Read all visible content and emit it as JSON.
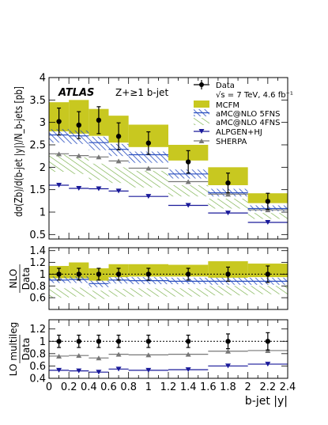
{
  "chart_data": {
    "type": "line",
    "title": "",
    "bins": [
      [
        0,
        0.2
      ],
      [
        0.2,
        0.4
      ],
      [
        0.4,
        0.6
      ],
      [
        0.6,
        0.8
      ],
      [
        0.8,
        1.2
      ],
      [
        1.2,
        1.6
      ],
      [
        1.6,
        2.0
      ],
      [
        2.0,
        2.4
      ]
    ],
    "x_tick_labels": [
      "0",
      "0.2",
      "0.4",
      "0.6",
      "0.8",
      "1",
      "1.2",
      "1.4",
      "1.6",
      "1.8",
      "2",
      "2.2",
      "2.4"
    ],
    "xlabel": "b-jet |y|",
    "atlas_label": "ATLAS",
    "process_label": "Z+≥1 b-jet",
    "legend": [
      {
        "id": "data",
        "label": "Data",
        "sublabel": "√s = 7 TeV, 4.6 fb⁻¹"
      },
      {
        "id": "mcfm",
        "label": "MCFM"
      },
      {
        "id": "amc5",
        "label": "aMC@NLO 5FNS"
      },
      {
        "id": "amc4",
        "label": "aMC@NLO 4FNS"
      },
      {
        "id": "alpgen",
        "label": "ALPGEN+HJ"
      },
      {
        "id": "sherpa",
        "label": "SHERPA"
      }
    ],
    "colors": {
      "mcfm": "#c8c820",
      "amc5": "#2a4fc0",
      "amc4": "#5aa02a",
      "alpgen": "#1a1a9a",
      "sherpa": "#777777",
      "data": "#000000"
    },
    "panels": [
      {
        "id": "main",
        "ylabel": "dσ(Zb)/d(b-jet |y|)/N_b-jets [pb]",
        "ylim": [
          0.4,
          4.0
        ],
        "yticks": [
          "0.5",
          "1",
          "1.5",
          "2",
          "2.5",
          "3",
          "3.5",
          "4"
        ],
        "ytick_values": [
          0.5,
          1,
          1.5,
          2,
          2.5,
          3,
          3.5,
          4
        ],
        "data": {
          "y": [
            3.02,
            2.94,
            3.05,
            2.69,
            2.54,
            2.12,
            1.65,
            1.24
          ],
          "err": [
            0.3,
            0.3,
            0.3,
            0.3,
            0.25,
            0.25,
            0.22,
            0.18
          ]
        },
        "mcfm": {
          "lo": [
            2.8,
            2.75,
            2.7,
            2.55,
            2.45,
            2.15,
            1.6,
            1.2
          ],
          "hi": [
            3.45,
            3.5,
            3.3,
            3.15,
            2.95,
            2.5,
            2.0,
            1.42
          ]
        },
        "amc5": {
          "lo": [
            2.55,
            2.52,
            2.38,
            2.25,
            2.1,
            1.75,
            1.35,
            1.02
          ],
          "hi": [
            2.85,
            2.82,
            2.68,
            2.52,
            2.35,
            1.95,
            1.52,
            1.15
          ],
          "y": [
            2.72,
            2.7,
            2.55,
            2.4,
            2.28,
            1.85,
            1.43,
            1.08
          ]
        },
        "amc4": {
          "lo": [
            1.9,
            1.85,
            1.72,
            1.65,
            1.55,
            1.35,
            1.08,
            0.85
          ],
          "hi": [
            2.28,
            2.22,
            2.08,
            2.0,
            1.92,
            1.6,
            1.3,
            0.98
          ]
        },
        "alpgen": {
          "y": [
            1.6,
            1.53,
            1.52,
            1.47,
            1.35,
            1.15,
            0.98,
            0.77
          ]
        },
        "sherpa": {
          "y": [
            2.3,
            2.26,
            2.23,
            2.14,
            1.98,
            1.68,
            1.4,
            1.05
          ]
        }
      },
      {
        "id": "nlo_ratio",
        "ylabel": "NLO / Data",
        "ylim": [
          0.4,
          1.45
        ],
        "yticks": [
          "0.6",
          "0.8",
          "1",
          "1.2",
          "1.4"
        ],
        "ytick_values": [
          0.6,
          0.8,
          1.0,
          1.2,
          1.4
        ],
        "data": {
          "y": [
            1,
            1,
            1,
            1,
            1,
            1,
            1,
            1
          ],
          "err": [
            0.1,
            0.1,
            0.1,
            0.1,
            0.1,
            0.1,
            0.12,
            0.14
          ]
        },
        "mcfm": {
          "lo": [
            0.93,
            0.93,
            0.89,
            0.95,
            0.96,
            0.96,
            0.94,
            0.95
          ],
          "hi": [
            1.14,
            1.2,
            1.1,
            1.17,
            1.17,
            1.16,
            1.22,
            1.18
          ]
        },
        "amc5": {
          "lo": [
            0.85,
            0.85,
            0.78,
            0.84,
            0.83,
            0.83,
            0.82,
            0.82
          ],
          "hi": [
            0.96,
            0.96,
            0.89,
            0.95,
            0.95,
            0.94,
            0.94,
            0.94
          ],
          "y": [
            0.9,
            0.91,
            0.84,
            0.9,
            0.89,
            0.88,
            0.88,
            0.88
          ]
        },
        "amc4": {
          "lo": [
            0.6,
            0.62,
            0.58,
            0.62,
            0.62,
            0.62,
            0.64,
            0.66
          ],
          "hi": [
            0.76,
            0.77,
            0.72,
            0.75,
            0.76,
            0.76,
            0.8,
            0.8
          ]
        },
        "alpgen": null,
        "sherpa": null
      },
      {
        "id": "lo_ratio",
        "ylabel": "LO multileg / Data",
        "ylim": [
          0.4,
          1.35
        ],
        "yticks": [
          "0.4",
          "0.6",
          "0.8",
          "1",
          "1.2"
        ],
        "ytick_values": [
          0.4,
          0.6,
          0.8,
          1.0,
          1.2
        ],
        "data": {
          "y": [
            1,
            1,
            1,
            1,
            1,
            1,
            1,
            1
          ],
          "err": [
            0.1,
            0.1,
            0.1,
            0.1,
            0.1,
            0.1,
            0.12,
            0.14
          ]
        },
        "mcfm": null,
        "amc5": null,
        "amc4": null,
        "alpgen": {
          "y": [
            0.53,
            0.52,
            0.5,
            0.55,
            0.53,
            0.54,
            0.6,
            0.63
          ]
        },
        "sherpa": {
          "y": [
            0.76,
            0.77,
            0.73,
            0.79,
            0.78,
            0.79,
            0.84,
            0.85
          ]
        }
      }
    ]
  }
}
